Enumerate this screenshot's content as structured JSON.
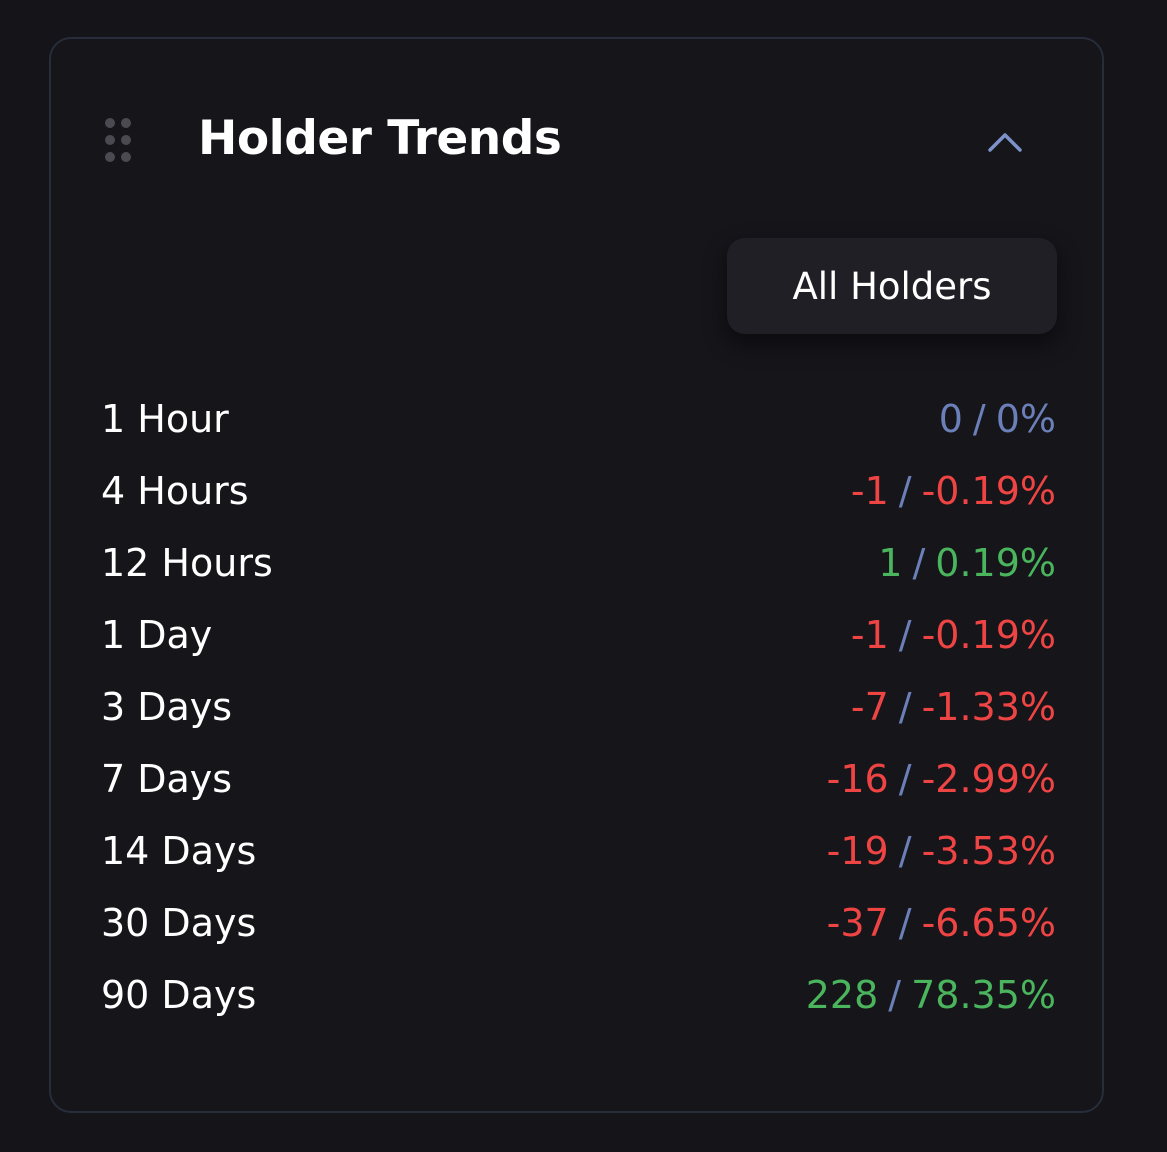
{
  "colors": {
    "background": "#141419",
    "panel_border": "#272d3b",
    "neutral": "#6b7fb8",
    "negative": "#ef4444",
    "positive": "#4ab55d",
    "text": "#ffffff"
  },
  "header": {
    "drag_icon": "drag-handle-icon",
    "title": "Holder Trends",
    "collapse_icon": "chevron-up-icon"
  },
  "filter": {
    "label": "All Holders"
  },
  "trends": [
    {
      "period": "1 Hour",
      "count": "0",
      "percent": "0%",
      "direction": "neutral"
    },
    {
      "period": "4 Hours",
      "count": "-1",
      "percent": "-0.19%",
      "direction": "negative"
    },
    {
      "period": "12 Hours",
      "count": "1",
      "percent": "0.19%",
      "direction": "positive"
    },
    {
      "period": "1 Day",
      "count": "-1",
      "percent": "-0.19%",
      "direction": "negative"
    },
    {
      "period": "3 Days",
      "count": "-7",
      "percent": "-1.33%",
      "direction": "negative"
    },
    {
      "period": "7 Days",
      "count": "-16",
      "percent": "-2.99%",
      "direction": "negative"
    },
    {
      "period": "14 Days",
      "count": "-19",
      "percent": "-3.53%",
      "direction": "negative"
    },
    {
      "period": "30 Days",
      "count": "-37",
      "percent": "-6.65%",
      "direction": "negative"
    },
    {
      "period": "90 Days",
      "count": "228",
      "percent": "78.35%",
      "direction": "positive"
    }
  ]
}
